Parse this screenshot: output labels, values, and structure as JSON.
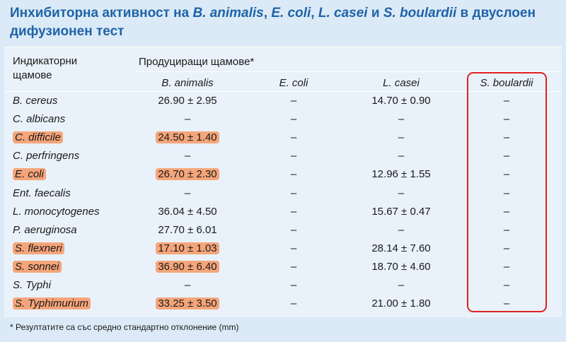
{
  "title": {
    "part1": "Инхибиторна активност на ",
    "ba": "B. animalis",
    "sep1": ", ",
    "ec": "E. coli",
    "sep2": ", ",
    "lc": "L. casei",
    "and": " и ",
    "sb": "S. boulardii",
    "part2": " в двуслоен дифузионен тест"
  },
  "header": {
    "indicator": "Индикаторни щамове",
    "producing": "Продуциращи щамове*",
    "columns": [
      "B. animalis",
      "E. coli",
      "L. casei",
      "S. boulardii"
    ]
  },
  "rows": [
    {
      "strain": "B. cereus",
      "ba": "26.90 ± 2.95",
      "ec": "–",
      "lc": "14.70 ± 0.90",
      "sb": "–",
      "highlight": false
    },
    {
      "strain": "C. albicans",
      "ba": "–",
      "ec": "–",
      "lc": "–",
      "sb": "–",
      "highlight": false
    },
    {
      "strain": "C. difficile",
      "ba": "24.50 ± 1.40",
      "ec": "–",
      "lc": "–",
      "sb": "–",
      "highlight": true
    },
    {
      "strain": "C. perfringens",
      "ba": "–",
      "ec": "–",
      "lc": "–",
      "sb": "–",
      "highlight": false
    },
    {
      "strain": "E. coli",
      "ba": "26.70 ± 2.30",
      "ec": "–",
      "lc": "12.96 ± 1.55",
      "sb": "–",
      "highlight": true
    },
    {
      "strain": "Ent. faecalis",
      "ba": "–",
      "ec": "–",
      "lc": "–",
      "sb": "–",
      "highlight": false
    },
    {
      "strain": "L. monocytogenes",
      "ba": "36.04 ± 4.50",
      "ec": "–",
      "lc": "15.67 ± 0.47",
      "sb": "–",
      "highlight": false
    },
    {
      "strain": "P. aeruginosa",
      "ba": "27.70 ± 6.01",
      "ec": "–",
      "lc": "–",
      "sb": "–",
      "highlight": false
    },
    {
      "strain": "S. flexneri",
      "ba": "17.10 ± 1.03",
      "ec": "–",
      "lc": "28.14 ± 7.60",
      "sb": "–",
      "highlight": true
    },
    {
      "strain": "S. sonnei",
      "ba": "36.90 ± 6.40",
      "ec": "–",
      "lc": "18.70 ± 4.60",
      "sb": "–",
      "highlight": true
    },
    {
      "strain": "S. Typhi",
      "ba": "–",
      "ec": "–",
      "lc": "–",
      "sb": "–",
      "highlight": false
    },
    {
      "strain": "S. Typhimurium",
      "ba": "33.25 ± 3.50",
      "ec": "–",
      "lc": "21.00 ± 1.80",
      "sb": "–",
      "highlight": true
    }
  ],
  "footnote": "* Резултатите са със средно стандартно отклонение (mm)",
  "colors": {
    "title": "#1f63a8",
    "background": "#dbeaf6",
    "highlight": "#f5a57a",
    "box": "#e02020"
  }
}
